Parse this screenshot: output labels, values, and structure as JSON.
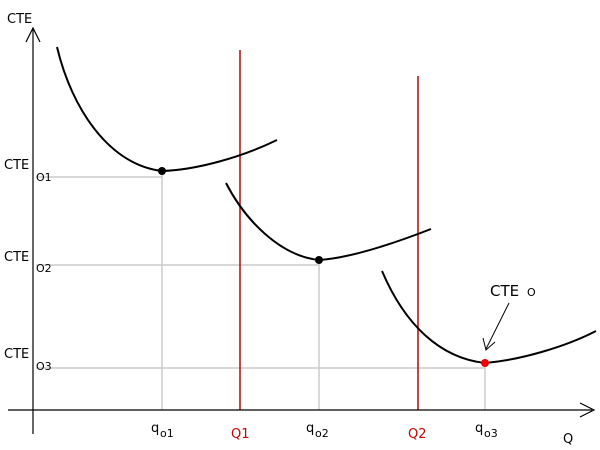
{
  "axes": {
    "y_label": "CTE",
    "x_label": "Q"
  },
  "y_ticks": [
    {
      "main": "CTE",
      "sub": "O1"
    },
    {
      "main": "CTE",
      "sub": "O2"
    },
    {
      "main": "CTE",
      "sub": "O3"
    }
  ],
  "x_ticks": [
    {
      "main": "q",
      "sub": "o1"
    },
    {
      "main": "Q1",
      "sub": ""
    },
    {
      "main": "q",
      "sub": "o2"
    },
    {
      "main": "Q2",
      "sub": ""
    },
    {
      "main": "q",
      "sub": "o3"
    }
  ],
  "annotation": {
    "main": "CTE",
    "sub": "O"
  },
  "colors": {
    "curve": "#000000",
    "boundary": "#cc0000",
    "guide": "#cccccc",
    "min_point_highlight": "#ee0000",
    "min_point": "#000000"
  }
}
